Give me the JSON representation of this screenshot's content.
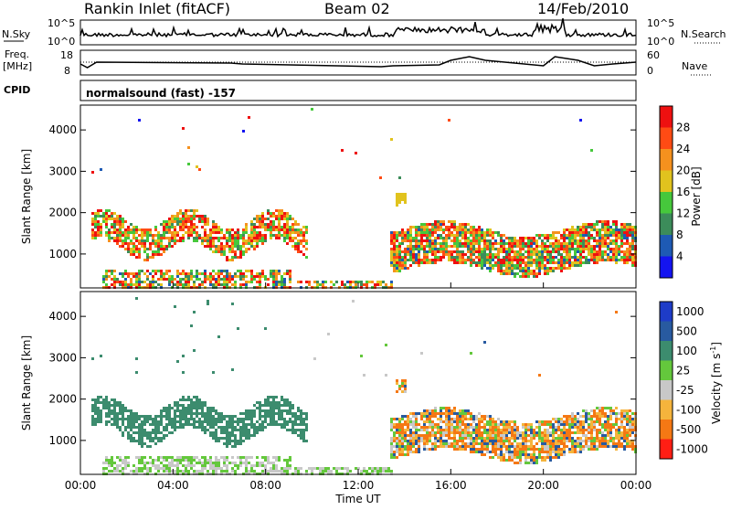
{
  "header": {
    "station": "Rankin Inlet (fitACF)",
    "beam": "Beam 02",
    "date": "14/Feb/2010"
  },
  "noise_panel": {
    "left_label": "N.Sky",
    "left_ticks": [
      "10^5",
      "10^0"
    ],
    "right_label": "N.Search",
    "right_ticks": [
      "10^5",
      "10^0"
    ]
  },
  "freq_panel": {
    "left_label_1": "Freq.",
    "left_label_2": "[MHz]",
    "left_ticks": [
      "18",
      "8"
    ],
    "right_label": "Nave",
    "right_ticks": [
      "60",
      "0"
    ]
  },
  "cpid_panel": {
    "label": "CPID",
    "text": "normalsound (fast) -157"
  },
  "chart_data": [
    {
      "type": "heatmap",
      "title": "Power",
      "ylabel": "Slant Range [km]",
      "xlabel": "",
      "y_ticks": [
        "1000",
        "2000",
        "3000",
        "4000"
      ],
      "ylim_km": [
        180,
        4600
      ],
      "colorbar_label": "Power [dB]",
      "colorbar_ticks": [
        "4",
        "8",
        "12",
        "16",
        "20",
        "24",
        "28"
      ],
      "colorbar_colors": [
        "#1414f0",
        "#1e5ab4",
        "#3c8c5a",
        "#46c83c",
        "#e1c31e",
        "#f5911e",
        "#ff4b14",
        "#ee1010"
      ],
      "approx_echo_regions": [
        {
          "t_start_h": 0.5,
          "t_end_h": 9.8,
          "r_km": 1500,
          "note": "main band 1000-2000 km"
        },
        {
          "t_start_h": 1.0,
          "t_end_h": 13.0,
          "r_km": 300,
          "note": "near range 200-600 km"
        },
        {
          "t_start_h": 13.5,
          "t_end_h": 24.0,
          "r_km": 1100,
          "note": "band 700-1700 km"
        }
      ]
    },
    {
      "type": "heatmap",
      "title": "Velocity",
      "ylabel": "Slant Range [km]",
      "xlabel": "Time UT",
      "x_ticks": [
        "00:00",
        "04:00",
        "08:00",
        "12:00",
        "16:00",
        "20:00",
        "00:00"
      ],
      "y_ticks": [
        "1000",
        "2000",
        "3000",
        "4000"
      ],
      "ylim_km": [
        180,
        4600
      ],
      "colorbar_label": "Velocity [m s^-1]",
      "colorbar_ticks": [
        "1000",
        "500",
        "100",
        "25",
        "-25",
        "-100",
        "-500",
        "-1000"
      ],
      "colorbar_colors": [
        "#1e3cc8",
        "#285aa0",
        "#3c8c6e",
        "#64c83c",
        "#c8c8c8",
        "#f5b43c",
        "#f57814",
        "#ff1e14"
      ]
    }
  ]
}
